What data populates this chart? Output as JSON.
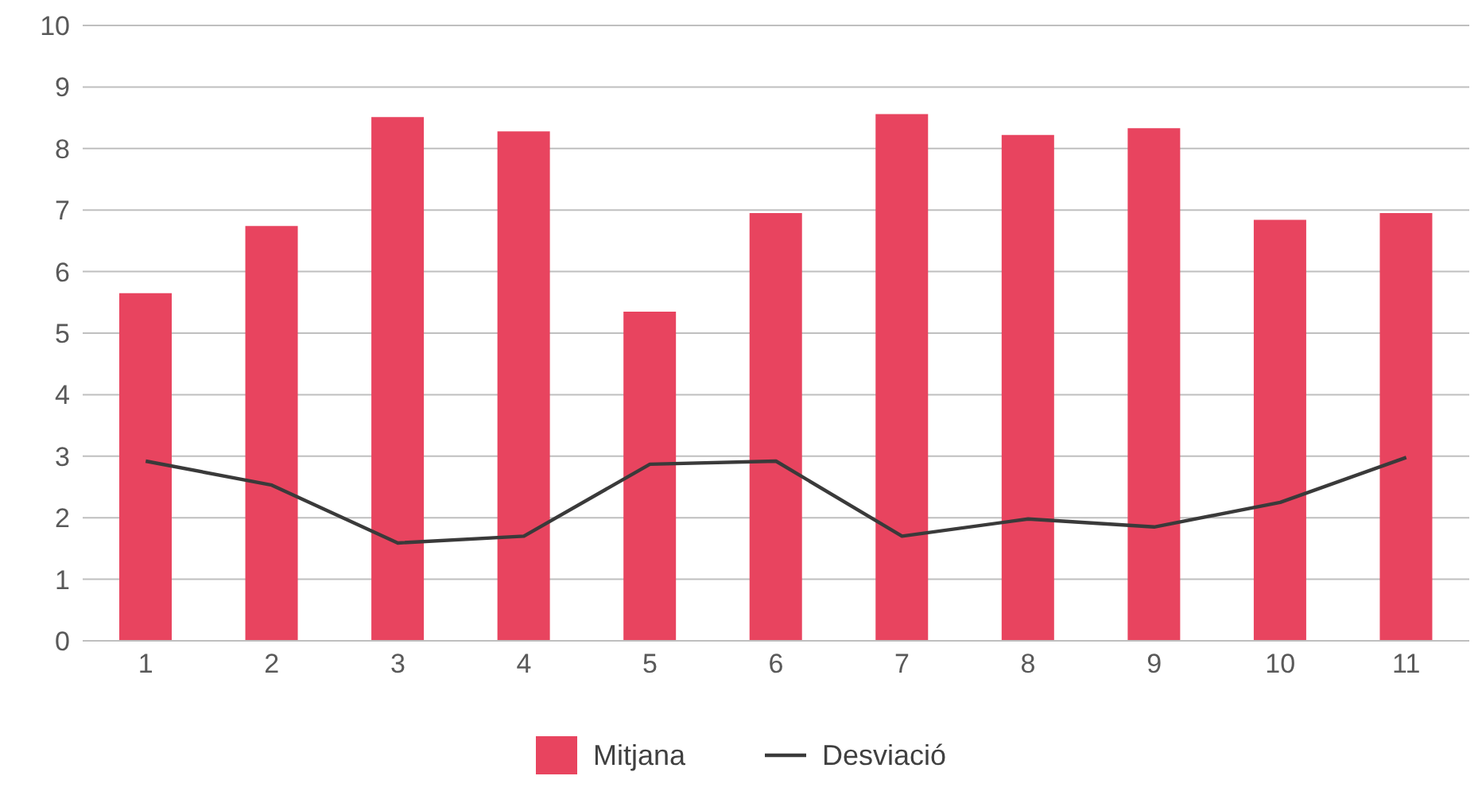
{
  "chart_data": {
    "type": "bar",
    "categories": [
      "1",
      "2",
      "3",
      "4",
      "5",
      "6",
      "7",
      "8",
      "9",
      "10",
      "11"
    ],
    "series": [
      {
        "name": "Mitjana",
        "color": "#e8445f",
        "values": [
          5.65,
          6.74,
          8.51,
          8.28,
          5.35,
          6.95,
          8.56,
          8.22,
          8.33,
          6.84,
          6.95
        ]
      },
      {
        "name": "Desviació",
        "type": "line",
        "color": "#3a3a3a",
        "values": [
          2.92,
          2.53,
          1.59,
          1.7,
          2.87,
          2.92,
          1.7,
          1.98,
          1.85,
          2.25,
          2.98
        ]
      }
    ],
    "ylim": [
      0,
      10
    ],
    "yticks": [
      0,
      1,
      2,
      3,
      4,
      5,
      6,
      7,
      8,
      9,
      10
    ],
    "grid": "y",
    "legend": "bottom",
    "marker": "none"
  }
}
